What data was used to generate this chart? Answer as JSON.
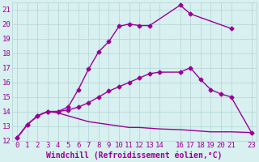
{
  "xlabel": "Windchill (Refroidissement éolien,°C)",
  "background_color": "#d8f0f0",
  "grid_color": "#b8d8d8",
  "line_color": "#990099",
  "xlim": [
    -0.5,
    23.5
  ],
  "ylim": [
    12,
    21.5
  ],
  "xticks": [
    0,
    1,
    2,
    3,
    4,
    5,
    6,
    7,
    8,
    9,
    10,
    11,
    12,
    13,
    14,
    16,
    17,
    18,
    19,
    20,
    21,
    23
  ],
  "yticks": [
    12,
    13,
    14,
    15,
    16,
    17,
    18,
    19,
    20,
    21
  ],
  "curve1_x": [
    0,
    1,
    2,
    3,
    4,
    5,
    6,
    7,
    8,
    9,
    10,
    11,
    12,
    13,
    16,
    17,
    21
  ],
  "curve1_y": [
    12.2,
    13.1,
    13.7,
    14.0,
    14.0,
    14.3,
    15.5,
    16.9,
    18.1,
    18.8,
    19.85,
    20.0,
    19.9,
    19.9,
    21.3,
    20.7,
    19.7
  ],
  "curve2_x": [
    0,
    1,
    2,
    3,
    4,
    5,
    6,
    7,
    8,
    9,
    10,
    11,
    12,
    13,
    14,
    16,
    17,
    18,
    19,
    20,
    21,
    23
  ],
  "curve2_y": [
    12.2,
    13.1,
    13.7,
    14.0,
    14.0,
    14.1,
    14.3,
    14.6,
    15.0,
    15.4,
    15.7,
    16.0,
    16.3,
    16.6,
    16.7,
    16.7,
    17.0,
    16.2,
    15.5,
    15.2,
    15.0,
    12.55
  ],
  "curve3_x": [
    0,
    1,
    2,
    3,
    4,
    5,
    6,
    7,
    8,
    9,
    10,
    11,
    12,
    13,
    14,
    16,
    17,
    18,
    19,
    20,
    21,
    23
  ],
  "curve3_y": [
    12.2,
    13.1,
    13.7,
    14.0,
    13.9,
    13.7,
    13.5,
    13.3,
    13.2,
    13.1,
    13.0,
    12.9,
    12.9,
    12.85,
    12.8,
    12.75,
    12.7,
    12.65,
    12.6,
    12.6,
    12.6,
    12.55
  ],
  "tick_fontsize": 6.5,
  "label_fontsize": 7,
  "line_width": 1.0,
  "marker_size": 2.5
}
